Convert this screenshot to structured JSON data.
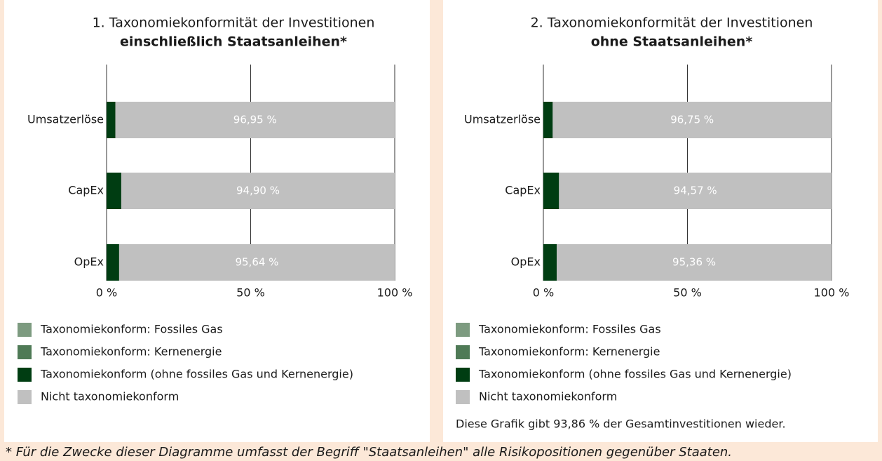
{
  "chart_data": [
    {
      "type": "stacked-bar-horizontal",
      "title": "1. Taxonomiekonformität der Investitionen",
      "subtitle": "einschließlich Staatsanleihen*",
      "categories": [
        "Umsatzerlöse",
        "CapEx",
        "OpEx"
      ],
      "series": [
        {
          "name": "Taxonomiekonform: Fossiles Gas",
          "color": "#7d9b80",
          "values": [
            0,
            0,
            0
          ]
        },
        {
          "name": "Taxonomiekonform: Kernenergie",
          "color": "#4f7a56",
          "values": [
            0,
            0,
            0
          ]
        },
        {
          "name": "Taxonomiekonform (ohne fossiles Gas und Kernenergie)",
          "color": "#003d12",
          "values": [
            3.05,
            5.1,
            4.36
          ]
        },
        {
          "name": "Nicht taxonomiekonform",
          "color": "#c0c0c0",
          "values": [
            96.95,
            94.9,
            95.64
          ],
          "value_labels": [
            "96,95 %",
            "94,90 %",
            "95,64 %"
          ]
        }
      ],
      "xlim": [
        0,
        100
      ],
      "xticks": [
        {
          "value": 0,
          "label": "0 %"
        },
        {
          "value": 50,
          "label": "50 %"
        },
        {
          "value": 100,
          "label": "100 %"
        }
      ],
      "grid": true
    },
    {
      "type": "stacked-bar-horizontal",
      "title": "2. Taxonomiekonformität der Investitionen",
      "subtitle": "ohne Staatsanleihen*",
      "categories": [
        "Umsatzerlöse",
        "CapEx",
        "OpEx"
      ],
      "series": [
        {
          "name": "Taxonomiekonform: Fossiles Gas",
          "color": "#7d9b80",
          "values": [
            0,
            0,
            0
          ]
        },
        {
          "name": "Taxonomiekonform: Kernenergie",
          "color": "#4f7a56",
          "values": [
            0,
            0,
            0
          ]
        },
        {
          "name": "Taxonomiekonform (ohne fossiles Gas und Kernenergie)",
          "color": "#003d12",
          "values": [
            3.25,
            5.43,
            4.64
          ]
        },
        {
          "name": "Nicht taxonomiekonform",
          "color": "#c0c0c0",
          "values": [
            96.75,
            94.57,
            95.36
          ],
          "value_labels": [
            "96,75 %",
            "94,57 %",
            "95,36 %"
          ]
        }
      ],
      "xlim": [
        0,
        100
      ],
      "xticks": [
        {
          "value": 0,
          "label": "0 %"
        },
        {
          "value": 50,
          "label": "50 %"
        },
        {
          "value": 100,
          "label": "100 %"
        }
      ],
      "grid": true,
      "note": "Diese Grafik gibt 93,86 % der Gesamtinvestitionen wieder."
    }
  ],
  "footnote": "* Für die Zwecke dieser Diagramme umfasst der Begriff \"Staatsanleihen\" alle Risikopositionen gegenüber Staaten."
}
